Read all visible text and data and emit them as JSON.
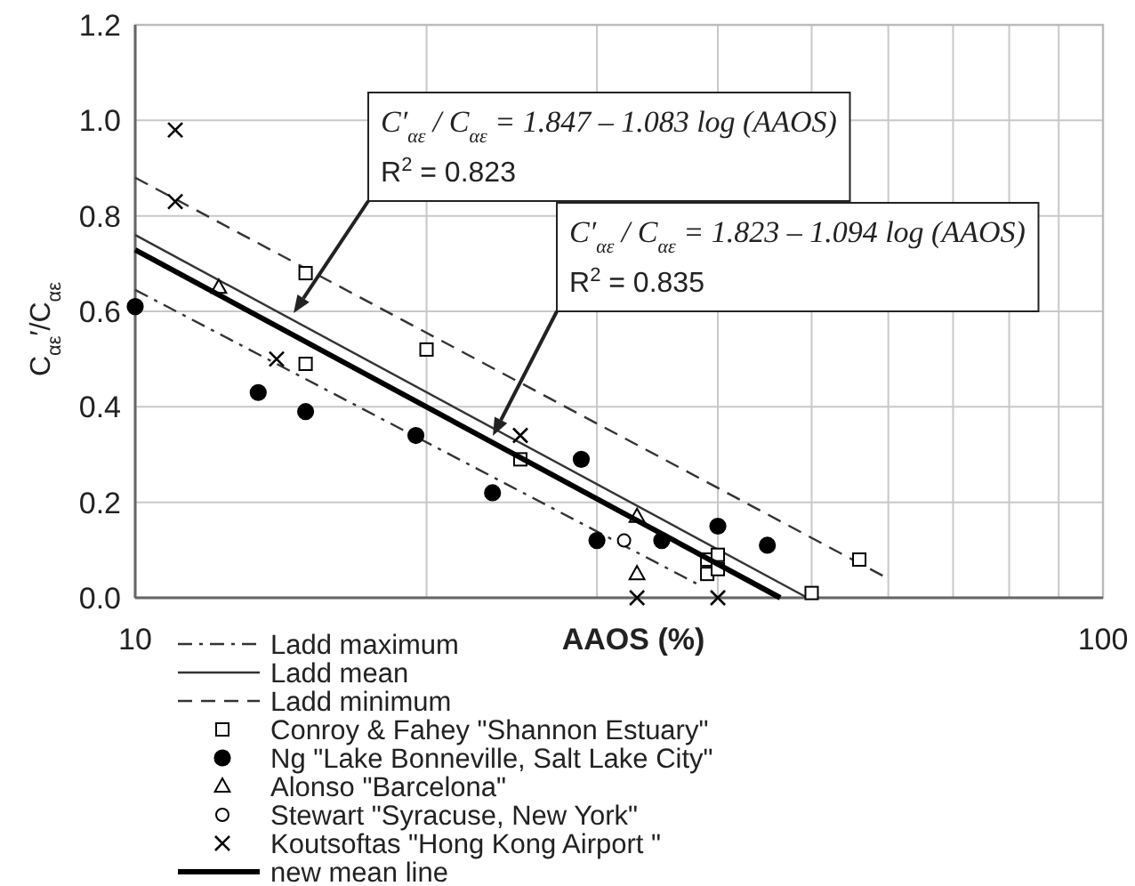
{
  "chart_data": {
    "type": "scatter",
    "xlabel": "AAOS (%)",
    "ylabel": "C$_{αε}$′/C$_{αε}$",
    "log": "x",
    "xlim": [
      10,
      100
    ],
    "ylim": [
      0,
      1.2
    ],
    "xticks": [
      10,
      {
        "value": 20,
        "label": null
      },
      {
        "value": 30,
        "label": null
      },
      {
        "value": 40,
        "label": null
      },
      {
        "value": 50,
        "label": null
      },
      {
        "value": 60,
        "label": null
      },
      {
        "value": 70,
        "label": null
      },
      {
        "value": 80,
        "label": null
      },
      {
        "value": 90,
        "label": null
      },
      100
    ],
    "yticks": [
      {
        "value": 0,
        "label": "0.0"
      },
      0.2,
      0.4,
      0.6,
      0.8,
      {
        "value": 1,
        "label": "1.0"
      },
      1.2
    ],
    "grid": true,
    "legend": "bottom left",
    "series": [
      {
        "name": "Ladd maximum",
        "type": "line",
        "color": "#333333",
        "marker": "none",
        "line_style": "dashdot",
        "x": [
          10,
          38
        ],
        "values": [
          0.645,
          0.03
        ]
      },
      {
        "name": "Ladd mean",
        "type": "line",
        "color": "#333333",
        "marker": "none",
        "line_style": "solid",
        "x": [
          10,
          49.5
        ],
        "values": [
          0.76,
          0.0
        ]
      },
      {
        "name": "Ladd minimum",
        "type": "line",
        "color": "#333333",
        "marker": "none",
        "line_style": "dashed",
        "x": [
          10,
          60
        ],
        "values": [
          0.88,
          0.04
        ]
      },
      {
        "name": "Conroy & Fahey \"Shannon Estuary\"",
        "color": "#000000",
        "marker": "square",
        "x": [
          15,
          15,
          20,
          25,
          39,
          39,
          40,
          40,
          50,
          56
        ],
        "values": [
          0.68,
          0.49,
          0.52,
          0.29,
          0.05,
          0.08,
          0.09,
          0.06,
          0.01,
          0.08
        ]
      },
      {
        "name": "Ng \"Lake Bonneville, Salt Lake City\"",
        "color": "#000000",
        "marker": "circle",
        "x": [
          10,
          13.4,
          15,
          19.5,
          23.4,
          28.9,
          30,
          35,
          40,
          45
        ],
        "values": [
          0.61,
          0.43,
          0.39,
          0.34,
          0.22,
          0.29,
          0.12,
          0.12,
          0.15,
          0.11
        ]
      },
      {
        "name": "Alonso \"Barcelona\"",
        "color": "#000000",
        "marker": "triangle",
        "x": [
          12.2,
          33,
          33
        ],
        "values": [
          0.65,
          0.17,
          0.05
        ]
      },
      {
        "name": "Stewart \"Syracuse, New York\"",
        "color": "#000000",
        "marker": "circle-open",
        "x": [
          32
        ],
        "values": [
          0.12
        ]
      },
      {
        "name": "Koutsoftas \"Hong Kong Airport \"",
        "color": "#000000",
        "marker": "cross",
        "x": [
          11,
          11,
          14,
          25,
          33,
          40
        ],
        "values": [
          0.98,
          0.83,
          0.5,
          0.34,
          0.0,
          0.0
        ]
      },
      {
        "name": "new mean line",
        "type": "line",
        "color": "#000000",
        "marker": "none",
        "line_style": "solid",
        "x": [
          10,
          46.4
        ],
        "values": [
          0.729,
          0.0
        ]
      }
    ],
    "annotations": [
      "C′$_{αε}$ / C$_{αε}$ = 1.847 – 1.083 log (AAOS)",
      "R$^{2}$ = 0.823",
      "C′$_{αε}$ / C$_{αε}$ = 1.823 – 1.094 log (AAOS)",
      "R$^{2}$ = 0.835"
    ]
  }
}
